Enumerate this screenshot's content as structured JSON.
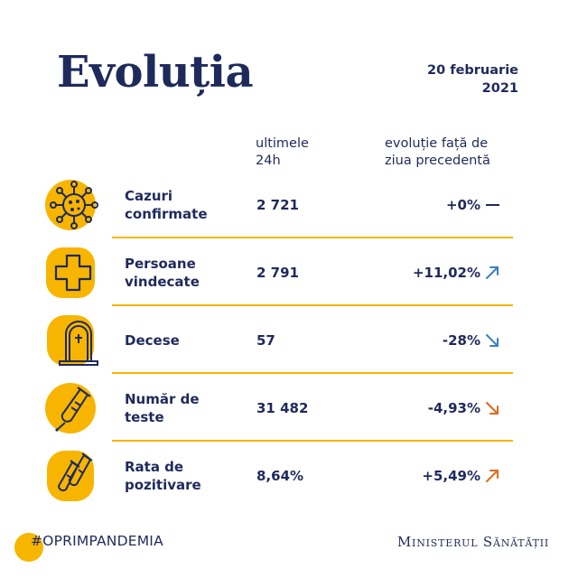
{
  "header": {
    "title": "Evoluția",
    "date_line1": "20 februarie",
    "date_line2": "2021"
  },
  "columns": {
    "last24_line1": "ultimele",
    "last24_line2": "24h",
    "evolution_line1": "evoluție față de",
    "evolution_line2": "ziua precedentă"
  },
  "rows": [
    {
      "label_line1": "Cazuri",
      "label_line2": "confirmate",
      "value": "2 721",
      "delta": "+0%",
      "trend": "flat",
      "icon": "virus-icon"
    },
    {
      "label_line1": "Persoane",
      "label_line2": "vindecate",
      "value": "2 791",
      "delta": "+11,02%",
      "trend": "up",
      "icon": "cross-icon"
    },
    {
      "label_line1": "Decese",
      "label_line2": "",
      "value": "57",
      "delta": "-28%",
      "trend": "down",
      "icon": "tombstone-icon"
    },
    {
      "label_line1": "Număr de",
      "label_line2": "teste",
      "value": "31 482",
      "delta": "-4,93%",
      "trend": "down",
      "icon": "test-tube-icon"
    },
    {
      "label_line1": "Rata de",
      "label_line2": "pozitivare",
      "value": "8,64%",
      "delta": "+5,49%",
      "trend": "up",
      "icon": "test-tubes-icon"
    }
  ],
  "footer": {
    "hashtag": "#OPRIMPANDEMIA",
    "ministry": "Ministerul Sănătății"
  },
  "colors": {
    "navy": "#1f2a5c",
    "accent": "#f7b500",
    "trend_blue": "#3b7fc4",
    "trend_orange": "#e06a1b"
  }
}
